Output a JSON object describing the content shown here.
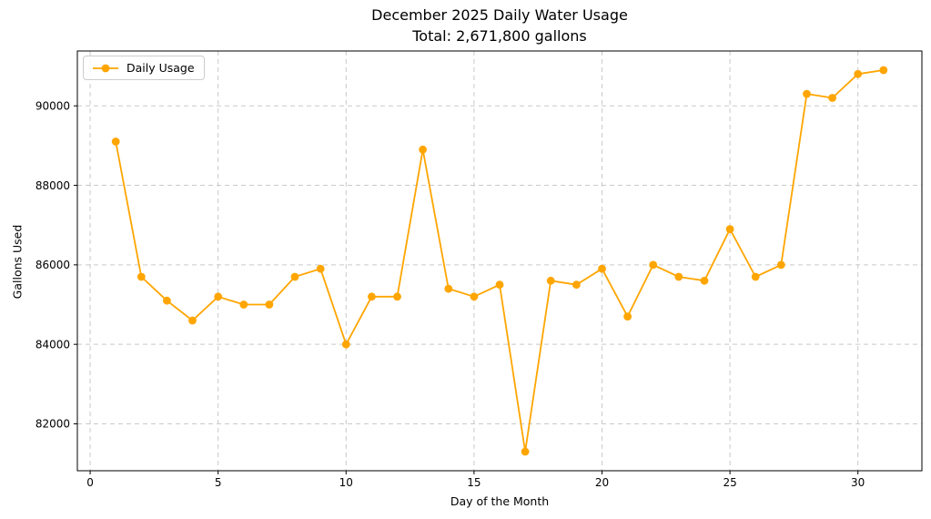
{
  "figure": {
    "title": "December 2025 Daily Water Usage",
    "subtitle": "Total: 2,671,800 gallons"
  },
  "chart_data": {
    "type": "line",
    "title": "December 2025 Daily Water Usage",
    "subtitle": "Total: 2,671,800 gallons",
    "xlabel": "Day of the Month",
    "ylabel": "Gallons Used",
    "total_gallons": 2671800,
    "series": [
      {
        "name": "Daily Usage",
        "color": "#FFA500",
        "marker": "circle",
        "x": [
          1,
          2,
          3,
          4,
          5,
          6,
          7,
          8,
          9,
          10,
          11,
          12,
          13,
          14,
          15,
          16,
          17,
          18,
          19,
          20,
          21,
          22,
          23,
          24,
          25,
          26,
          27,
          28,
          29,
          30,
          31
        ],
        "values": [
          89100,
          85700,
          85100,
          84600,
          85200,
          85000,
          85000,
          85700,
          85900,
          84000,
          85200,
          85200,
          88900,
          85400,
          85200,
          85500,
          81300,
          85600,
          85500,
          85900,
          84700,
          86000,
          85700,
          85600,
          86900,
          85700,
          86000,
          90300,
          90200,
          90800,
          90900
        ]
      }
    ],
    "x_ticks": [
      0,
      5,
      10,
      15,
      20,
      25,
      30
    ],
    "y_ticks": [
      82000,
      84000,
      86000,
      88000,
      90000
    ],
    "xlim": [
      -0.5,
      32.5
    ],
    "ylim": [
      80820,
      91380
    ],
    "grid": true,
    "grid_style": "dashed",
    "legend_position": "upper left",
    "colors": {
      "line": "#FFA500",
      "grid": "#c9c9c9",
      "axis": "#000000",
      "text": "#000000",
      "background": "#ffffff"
    }
  }
}
